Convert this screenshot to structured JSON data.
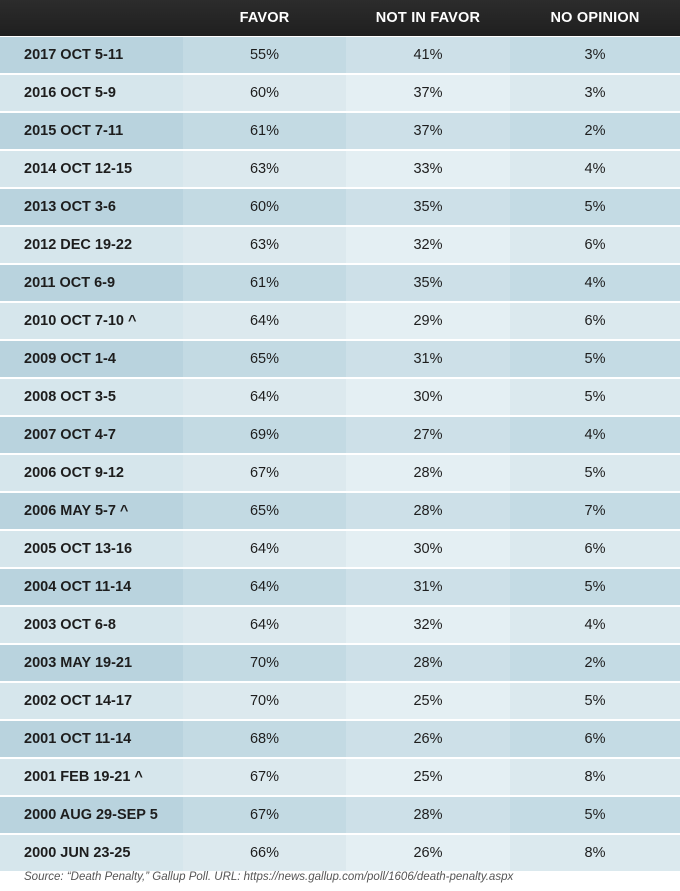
{
  "chart_data": {
    "type": "table",
    "columns": [
      "",
      "FAVOR",
      "NOT IN FAVOR",
      "NO OPINION"
    ],
    "rows": [
      {
        "date": "2017 OCT 5-11",
        "favor": "55%",
        "not_in_favor": "41%",
        "no_opinion": "3%"
      },
      {
        "date": "2016 OCT 5-9",
        "favor": "60%",
        "not_in_favor": "37%",
        "no_opinion": "3%"
      },
      {
        "date": "2015 OCT 7-11",
        "favor": "61%",
        "not_in_favor": "37%",
        "no_opinion": "2%"
      },
      {
        "date": "2014 OCT 12-15",
        "favor": "63%",
        "not_in_favor": "33%",
        "no_opinion": "4%"
      },
      {
        "date": "2013 OCT 3-6",
        "favor": "60%",
        "not_in_favor": "35%",
        "no_opinion": "5%"
      },
      {
        "date": "2012 DEC 19-22",
        "favor": "63%",
        "not_in_favor": "32%",
        "no_opinion": "6%"
      },
      {
        "date": "2011 OCT 6-9",
        "favor": "61%",
        "not_in_favor": "35%",
        "no_opinion": "4%"
      },
      {
        "date": "2010 OCT 7-10 ^",
        "favor": "64%",
        "not_in_favor": "29%",
        "no_opinion": "6%"
      },
      {
        "date": "2009 OCT 1-4",
        "favor": "65%",
        "not_in_favor": "31%",
        "no_opinion": "5%"
      },
      {
        "date": "2008 OCT 3-5",
        "favor": "64%",
        "not_in_favor": "30%",
        "no_opinion": "5%"
      },
      {
        "date": "2007 OCT 4-7",
        "favor": "69%",
        "not_in_favor": "27%",
        "no_opinion": "4%"
      },
      {
        "date": "2006 OCT 9-12",
        "favor": "67%",
        "not_in_favor": "28%",
        "no_opinion": "5%"
      },
      {
        "date": "2006 MAY 5-7 ^",
        "favor": "65%",
        "not_in_favor": "28%",
        "no_opinion": "7%"
      },
      {
        "date": "2005 OCT 13-16",
        "favor": "64%",
        "not_in_favor": "30%",
        "no_opinion": "6%"
      },
      {
        "date": "2004 OCT 11-14",
        "favor": "64%",
        "not_in_favor": "31%",
        "no_opinion": "5%"
      },
      {
        "date": "2003 OCT 6-8",
        "favor": "64%",
        "not_in_favor": "32%",
        "no_opinion": "4%"
      },
      {
        "date": "2003 MAY 19-21",
        "favor": "70%",
        "not_in_favor": "28%",
        "no_opinion": "2%"
      },
      {
        "date": "2002 OCT 14-17",
        "favor": "70%",
        "not_in_favor": "25%",
        "no_opinion": "5%"
      },
      {
        "date": "2001 OCT 11-14",
        "favor": "68%",
        "not_in_favor": "26%",
        "no_opinion": "6%"
      },
      {
        "date": "2001 FEB 19-21 ^",
        "favor": "67%",
        "not_in_favor": "25%",
        "no_opinion": "8%"
      },
      {
        "date": "2000 AUG 29-SEP 5",
        "favor": "67%",
        "not_in_favor": "28%",
        "no_opinion": "5%"
      },
      {
        "date": "2000 JUN 23-25",
        "favor": "66%",
        "not_in_favor": "26%",
        "no_opinion": "8%"
      }
    ],
    "source": "Source: “Death Penalty,” Gallup Poll. URL: https://news.gallup.com/poll/1606/death-penalty.aspx"
  },
  "colors": {
    "header_bg": "#222222",
    "header_text": "#ffffff",
    "row_tone_a": "#c3dae3",
    "row_tone_b": "#dce9ee",
    "body_text": "#1d1d1d"
  }
}
